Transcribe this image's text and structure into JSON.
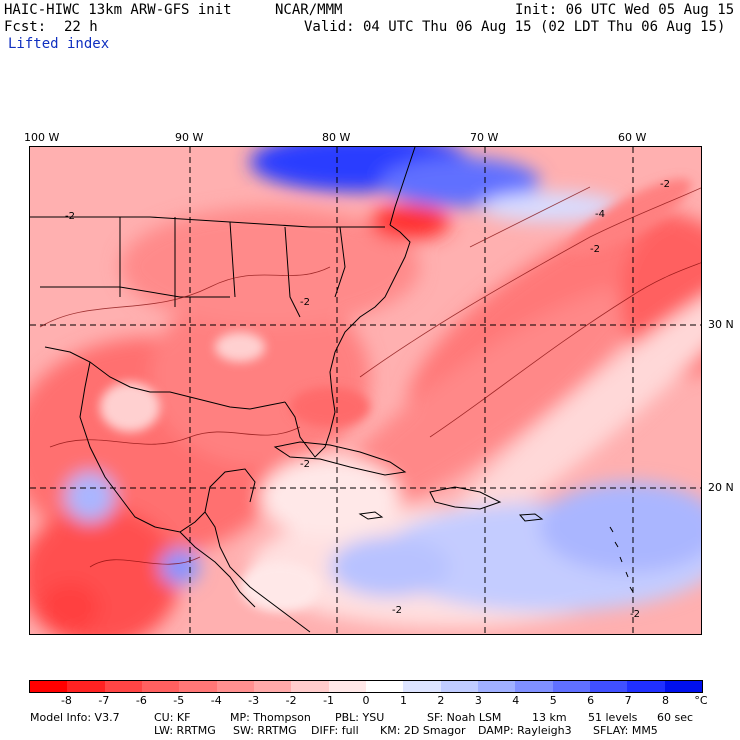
{
  "header": {
    "model": "HAIC-HIWC 13km ARW-GFS init",
    "org": "NCAR/MMM",
    "init": "Init: 06 UTC Wed 05 Aug 15",
    "fcst_label": "Fcst:",
    "fcst_value": "22 h",
    "valid": "Valid: 04 UTC Thu 06 Aug 15 (02 LDT Thu 06 Aug 15)",
    "field": "Lifted index"
  },
  "map": {
    "lon_labels": [
      "100 W",
      "90 W",
      "80 W",
      "70 W",
      "60 W"
    ],
    "lat_labels": [
      "30 N",
      "20 N"
    ],
    "contour_labels": [
      "-2",
      "-4",
      "2"
    ]
  },
  "colorbar": {
    "unit": "°C",
    "tick_labels": [
      "-8",
      "-7",
      "-6",
      "-5",
      "-4",
      "-3",
      "-2",
      "-1",
      "0",
      "1",
      "2",
      "3",
      "4",
      "5",
      "6",
      "7",
      "8"
    ],
    "colors": [
      "#ff0000",
      "#ff2222",
      "#ff4545",
      "#ff6060",
      "#ff7777",
      "#ff9090",
      "#ffaaaa",
      "#ffcccc",
      "#ffe8e8",
      "#ffffff",
      "#dde4ff",
      "#c0ccff",
      "#a0b0ff",
      "#8090ff",
      "#6070ff",
      "#4050ff",
      "#2030ff",
      "#0010ee"
    ]
  },
  "footer": {
    "line1": [
      "Model Info: V3.7",
      "CU: KF",
      "MP: Thompson",
      "PBL: YSU",
      "SF: Noah LSM",
      "13 km",
      "51 levels",
      "60 sec"
    ],
    "line2": [
      "LW: RRTMG",
      "SW: RRTMG",
      "DIFF: full",
      "KM: 2D Smagor",
      "DAMP: Rayleigh3",
      "SFLAY: MM5"
    ]
  }
}
